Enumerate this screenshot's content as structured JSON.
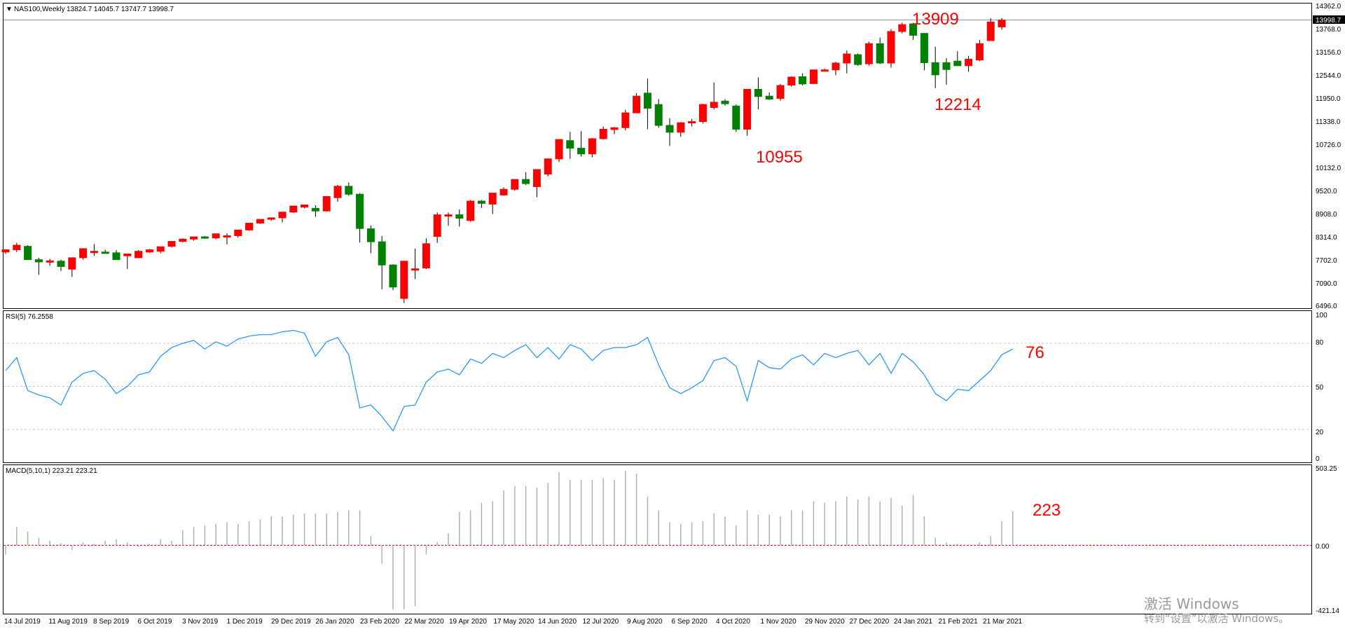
{
  "colors": {
    "bull": "#ff0000",
    "bear": "#008000",
    "wick": "#000000",
    "rsi_line": "#1e90ff",
    "macd_bar": "#b0b0b0",
    "zero_line": "#c00000",
    "grid": "#c8c8c8",
    "annotation": "#ff0000",
    "fractal": "#a0a0a0"
  },
  "price_panel": {
    "symbol_marker": "▼",
    "title": "NAS100,Weekly",
    "ohlc": "13824.7 14045.7 13747.7 13998.7",
    "current_price": "13998.7",
    "axis_ticks": [
      "14362.0",
      "13768.0",
      "13156.0",
      "12544.0",
      "11950.0",
      "11338.0",
      "10726.0",
      "10132.0",
      "9520.0",
      "8908.0",
      "8314.0",
      "7702.0",
      "7090.0",
      "6496.0"
    ]
  },
  "rsi_panel": {
    "title": "RSI(5) 76.2558",
    "axis_ticks": [
      "100",
      "80",
      "50",
      "20",
      "0"
    ]
  },
  "macd_panel": {
    "title": "MACD(5,10,1) 223.21 223.21",
    "axis_ticks": [
      "503.25",
      "0.00",
      "-421.14"
    ]
  },
  "annotations": {
    "high_13909": "13909",
    "low_10955": "10955",
    "low_12214": "12214",
    "rsi_76": "76",
    "macd_223": "223"
  },
  "date_labels": [
    "14 Jul 2019",
    "11 Aug 2019",
    "8 Sep 2019",
    "6 Oct 2019",
    "3 Nov 2019",
    "1 Dec 2019",
    "29 Dec 2019",
    "26 Jan 2020",
    "23 Feb 2020",
    "22 Mar 2020",
    "19 Apr 2020",
    "17 May 2020",
    "14 Jun 2020",
    "12 Jul 2020",
    "9 Aug 2020",
    "6 Sep 2020",
    "4 Oct 2020",
    "1 Nov 2020",
    "29 Nov 2020",
    "27 Dec 2020",
    "24 Jan 2021",
    "21 Feb 2021",
    "21 Mar 2021"
  ],
  "watermark": {
    "line1": "激活 Windows",
    "line2": "转到“设置”以激活 Windows。"
  },
  "chart_data": {
    "type": "candlestick",
    "symbol": "NAS100",
    "timeframe": "Weekly",
    "price_range": [
      6496,
      14362
    ],
    "candles": [
      {
        "o": 7900,
        "h": 7960,
        "l": 7850,
        "c": 7960
      },
      {
        "o": 7960,
        "h": 8140,
        "l": 7900,
        "c": 8080
      },
      {
        "o": 8050,
        "h": 8080,
        "l": 7700,
        "c": 7700
      },
      {
        "o": 7700,
        "h": 7750,
        "l": 7300,
        "c": 7640
      },
      {
        "o": 7640,
        "h": 7720,
        "l": 7540,
        "c": 7670
      },
      {
        "o": 7660,
        "h": 7700,
        "l": 7400,
        "c": 7520
      },
      {
        "o": 7450,
        "h": 7760,
        "l": 7250,
        "c": 7750
      },
      {
        "o": 7750,
        "h": 7990,
        "l": 7700,
        "c": 7990
      },
      {
        "o": 7900,
        "h": 8110,
        "l": 7800,
        "c": 7920
      },
      {
        "o": 7900,
        "h": 7960,
        "l": 7870,
        "c": 7870
      },
      {
        "o": 7880,
        "h": 7950,
        "l": 7700,
        "c": 7700
      },
      {
        "o": 7800,
        "h": 7850,
        "l": 7450,
        "c": 7850
      },
      {
        "o": 7750,
        "h": 7950,
        "l": 7750,
        "c": 7920
      },
      {
        "o": 7900,
        "h": 7980,
        "l": 7880,
        "c": 7960
      },
      {
        "o": 7920,
        "h": 8040,
        "l": 7870,
        "c": 8040
      },
      {
        "o": 8050,
        "h": 8180,
        "l": 8020,
        "c": 8180
      },
      {
        "o": 8180,
        "h": 8260,
        "l": 8150,
        "c": 8240
      },
      {
        "o": 8240,
        "h": 8300,
        "l": 8200,
        "c": 8300
      },
      {
        "o": 8300,
        "h": 8320,
        "l": 8250,
        "c": 8270
      },
      {
        "o": 8270,
        "h": 8380,
        "l": 8240,
        "c": 8380
      },
      {
        "o": 8330,
        "h": 8390,
        "l": 8100,
        "c": 8330
      },
      {
        "o": 8330,
        "h": 8480,
        "l": 8280,
        "c": 8480
      },
      {
        "o": 8480,
        "h": 8660,
        "l": 8460,
        "c": 8660
      },
      {
        "o": 8660,
        "h": 8760,
        "l": 8640,
        "c": 8760
      },
      {
        "o": 8760,
        "h": 8810,
        "l": 8720,
        "c": 8800
      },
      {
        "o": 8800,
        "h": 8950,
        "l": 8680,
        "c": 8950
      },
      {
        "o": 8950,
        "h": 9120,
        "l": 8930,
        "c": 9110
      },
      {
        "o": 9080,
        "h": 9150,
        "l": 9050,
        "c": 9140
      },
      {
        "o": 9050,
        "h": 9130,
        "l": 8830,
        "c": 8980
      },
      {
        "o": 8980,
        "h": 9360,
        "l": 8960,
        "c": 9360
      },
      {
        "o": 9330,
        "h": 9670,
        "l": 9220,
        "c": 9630
      },
      {
        "o": 9630,
        "h": 9730,
        "l": 9380,
        "c": 9420
      },
      {
        "o": 9420,
        "h": 9450,
        "l": 8150,
        "c": 8520
      },
      {
        "o": 8510,
        "h": 8600,
        "l": 7870,
        "c": 8170
      },
      {
        "o": 8170,
        "h": 8320,
        "l": 6920,
        "c": 7560
      },
      {
        "o": 7560,
        "h": 7580,
        "l": 6900,
        "c": 6980
      },
      {
        "o": 6680,
        "h": 7660,
        "l": 6560,
        "c": 7660
      },
      {
        "o": 7440,
        "h": 7990,
        "l": 7190,
        "c": 7460
      },
      {
        "o": 7480,
        "h": 8260,
        "l": 7450,
        "c": 8120
      },
      {
        "o": 8310,
        "h": 8940,
        "l": 8140,
        "c": 8880
      },
      {
        "o": 8880,
        "h": 8940,
        "l": 8590,
        "c": 8880
      },
      {
        "o": 8880,
        "h": 9020,
        "l": 8570,
        "c": 8790
      },
      {
        "o": 8730,
        "h": 9270,
        "l": 8700,
        "c": 9240
      },
      {
        "o": 9240,
        "h": 9270,
        "l": 9060,
        "c": 9180
      },
      {
        "o": 9160,
        "h": 9450,
        "l": 8900,
        "c": 9450
      },
      {
        "o": 9400,
        "h": 9600,
        "l": 9380,
        "c": 9550
      },
      {
        "o": 9550,
        "h": 9810,
        "l": 9510,
        "c": 9810
      },
      {
        "o": 9810,
        "h": 10000,
        "l": 9660,
        "c": 9700
      },
      {
        "o": 9620,
        "h": 10070,
        "l": 9340,
        "c": 10070
      },
      {
        "o": 9950,
        "h": 10360,
        "l": 9890,
        "c": 10350
      },
      {
        "o": 10350,
        "h": 10860,
        "l": 10270,
        "c": 10860
      },
      {
        "o": 10830,
        "h": 11060,
        "l": 10350,
        "c": 10630
      },
      {
        "o": 10630,
        "h": 11080,
        "l": 10410,
        "c": 10480
      },
      {
        "o": 10480,
        "h": 10900,
        "l": 10390,
        "c": 10880
      },
      {
        "o": 10880,
        "h": 11200,
        "l": 10860,
        "c": 11130
      },
      {
        "o": 11120,
        "h": 11190,
        "l": 11000,
        "c": 11170
      },
      {
        "o": 11170,
        "h": 11640,
        "l": 11100,
        "c": 11560
      },
      {
        "o": 11560,
        "h": 12080,
        "l": 11560,
        "c": 12000
      },
      {
        "o": 12080,
        "h": 12460,
        "l": 11130,
        "c": 11680
      },
      {
        "o": 11780,
        "h": 11920,
        "l": 11170,
        "c": 11230
      },
      {
        "o": 11230,
        "h": 11420,
        "l": 10690,
        "c": 11050
      },
      {
        "o": 11050,
        "h": 11320,
        "l": 10930,
        "c": 11300
      },
      {
        "o": 11300,
        "h": 11400,
        "l": 11200,
        "c": 11330
      },
      {
        "o": 11330,
        "h": 11800,
        "l": 11280,
        "c": 11780
      },
      {
        "o": 11700,
        "h": 12360,
        "l": 11650,
        "c": 11840
      },
      {
        "o": 11870,
        "h": 11920,
        "l": 11750,
        "c": 11800
      },
      {
        "o": 11740,
        "h": 11780,
        "l": 11060,
        "c": 11130
      },
      {
        "o": 11130,
        "h": 12180,
        "l": 10960,
        "c": 12180
      },
      {
        "o": 12180,
        "h": 12490,
        "l": 11650,
        "c": 11990
      },
      {
        "o": 12000,
        "h": 12100,
        "l": 11900,
        "c": 11920
      },
      {
        "o": 11940,
        "h": 12320,
        "l": 11880,
        "c": 12280
      },
      {
        "o": 12290,
        "h": 12520,
        "l": 12250,
        "c": 12500
      },
      {
        "o": 12510,
        "h": 12600,
        "l": 12280,
        "c": 12320
      },
      {
        "o": 12330,
        "h": 12700,
        "l": 12320,
        "c": 12690
      },
      {
        "o": 12690,
        "h": 12720,
        "l": 12650,
        "c": 12690
      },
      {
        "o": 12690,
        "h": 12900,
        "l": 12550,
        "c": 12870
      },
      {
        "o": 12870,
        "h": 13200,
        "l": 12600,
        "c": 13110
      },
      {
        "o": 13090,
        "h": 13120,
        "l": 12800,
        "c": 12830
      },
      {
        "o": 12850,
        "h": 13430,
        "l": 12800,
        "c": 13380
      },
      {
        "o": 13380,
        "h": 13540,
        "l": 12840,
        "c": 12870
      },
      {
        "o": 12870,
        "h": 13760,
        "l": 12750,
        "c": 13700
      },
      {
        "o": 13700,
        "h": 13930,
        "l": 13650,
        "c": 13880
      },
      {
        "o": 13900,
        "h": 13930,
        "l": 13480,
        "c": 13600
      },
      {
        "o": 13650,
        "h": 13660,
        "l": 12680,
        "c": 12880
      },
      {
        "o": 12880,
        "h": 13300,
        "l": 12210,
        "c": 12560
      },
      {
        "o": 12880,
        "h": 13000,
        "l": 12300,
        "c": 12700
      },
      {
        "o": 12920,
        "h": 13180,
        "l": 12830,
        "c": 12800
      },
      {
        "o": 12800,
        "h": 13060,
        "l": 12640,
        "c": 12970
      },
      {
        "o": 12950,
        "h": 13480,
        "l": 12920,
        "c": 13380
      },
      {
        "o": 13460,
        "h": 14050,
        "l": 13470,
        "c": 13950
      },
      {
        "o": 13820,
        "h": 14050,
        "l": 13750,
        "c": 14000
      }
    ],
    "rsi": {
      "name": "RSI(5)",
      "levels": [
        20,
        50,
        80
      ],
      "range": [
        0,
        100
      ],
      "values": [
        61,
        70,
        47,
        44,
        42,
        37,
        53,
        59,
        61,
        55,
        45,
        50,
        58,
        60,
        71,
        77,
        80,
        82,
        76,
        81,
        78,
        83,
        85,
        86,
        86,
        88,
        89,
        87,
        71,
        81,
        84,
        72,
        35,
        37,
        29,
        19,
        36,
        37,
        53,
        60,
        62,
        58,
        69,
        66,
        73,
        70,
        75,
        79,
        70,
        77,
        69,
        79,
        76,
        68,
        75,
        77,
        77,
        79,
        84,
        65,
        49,
        45,
        49,
        54,
        68,
        70,
        64,
        40,
        68,
        63,
        62,
        69,
        72,
        65,
        73,
        70,
        73,
        75,
        65,
        73,
        59,
        73,
        67,
        58,
        45,
        40,
        48,
        47,
        54,
        61,
        72,
        76
      ]
    },
    "macd": {
      "name": "MACD(5,10,1)",
      "range": [
        -421.14,
        503.25
      ],
      "values": [
        -60,
        120,
        90,
        50,
        30,
        15,
        -30,
        20,
        10,
        30,
        40,
        20,
        -10,
        10,
        40,
        30,
        100,
        120,
        130,
        140,
        150,
        140,
        160,
        170,
        190,
        190,
        200,
        210,
        210,
        210,
        220,
        230,
        230,
        60,
        -120,
        -420,
        -420,
        -400,
        -60,
        20,
        80,
        220,
        230,
        280,
        290,
        360,
        390,
        390,
        380,
        410,
        480,
        430,
        430,
        430,
        440,
        430,
        490,
        470,
        320,
        230,
        150,
        140,
        150,
        160,
        210,
        190,
        130,
        230,
        200,
        200,
        190,
        230,
        230,
        290,
        280,
        290,
        320,
        300,
        320,
        290,
        310,
        260,
        330,
        190,
        50,
        20,
        10,
        0,
        20,
        60,
        160,
        223
      ]
    },
    "annotations": [
      {
        "text": "13909",
        "value": 13909
      },
      {
        "text": "10955",
        "value": 10955
      },
      {
        "text": "12214",
        "value": 12214
      },
      {
        "text": "76",
        "indicator": "RSI(5)",
        "value": 76
      },
      {
        "text": "223",
        "indicator": "MACD(5,10,1)",
        "value": 223
      }
    ]
  }
}
